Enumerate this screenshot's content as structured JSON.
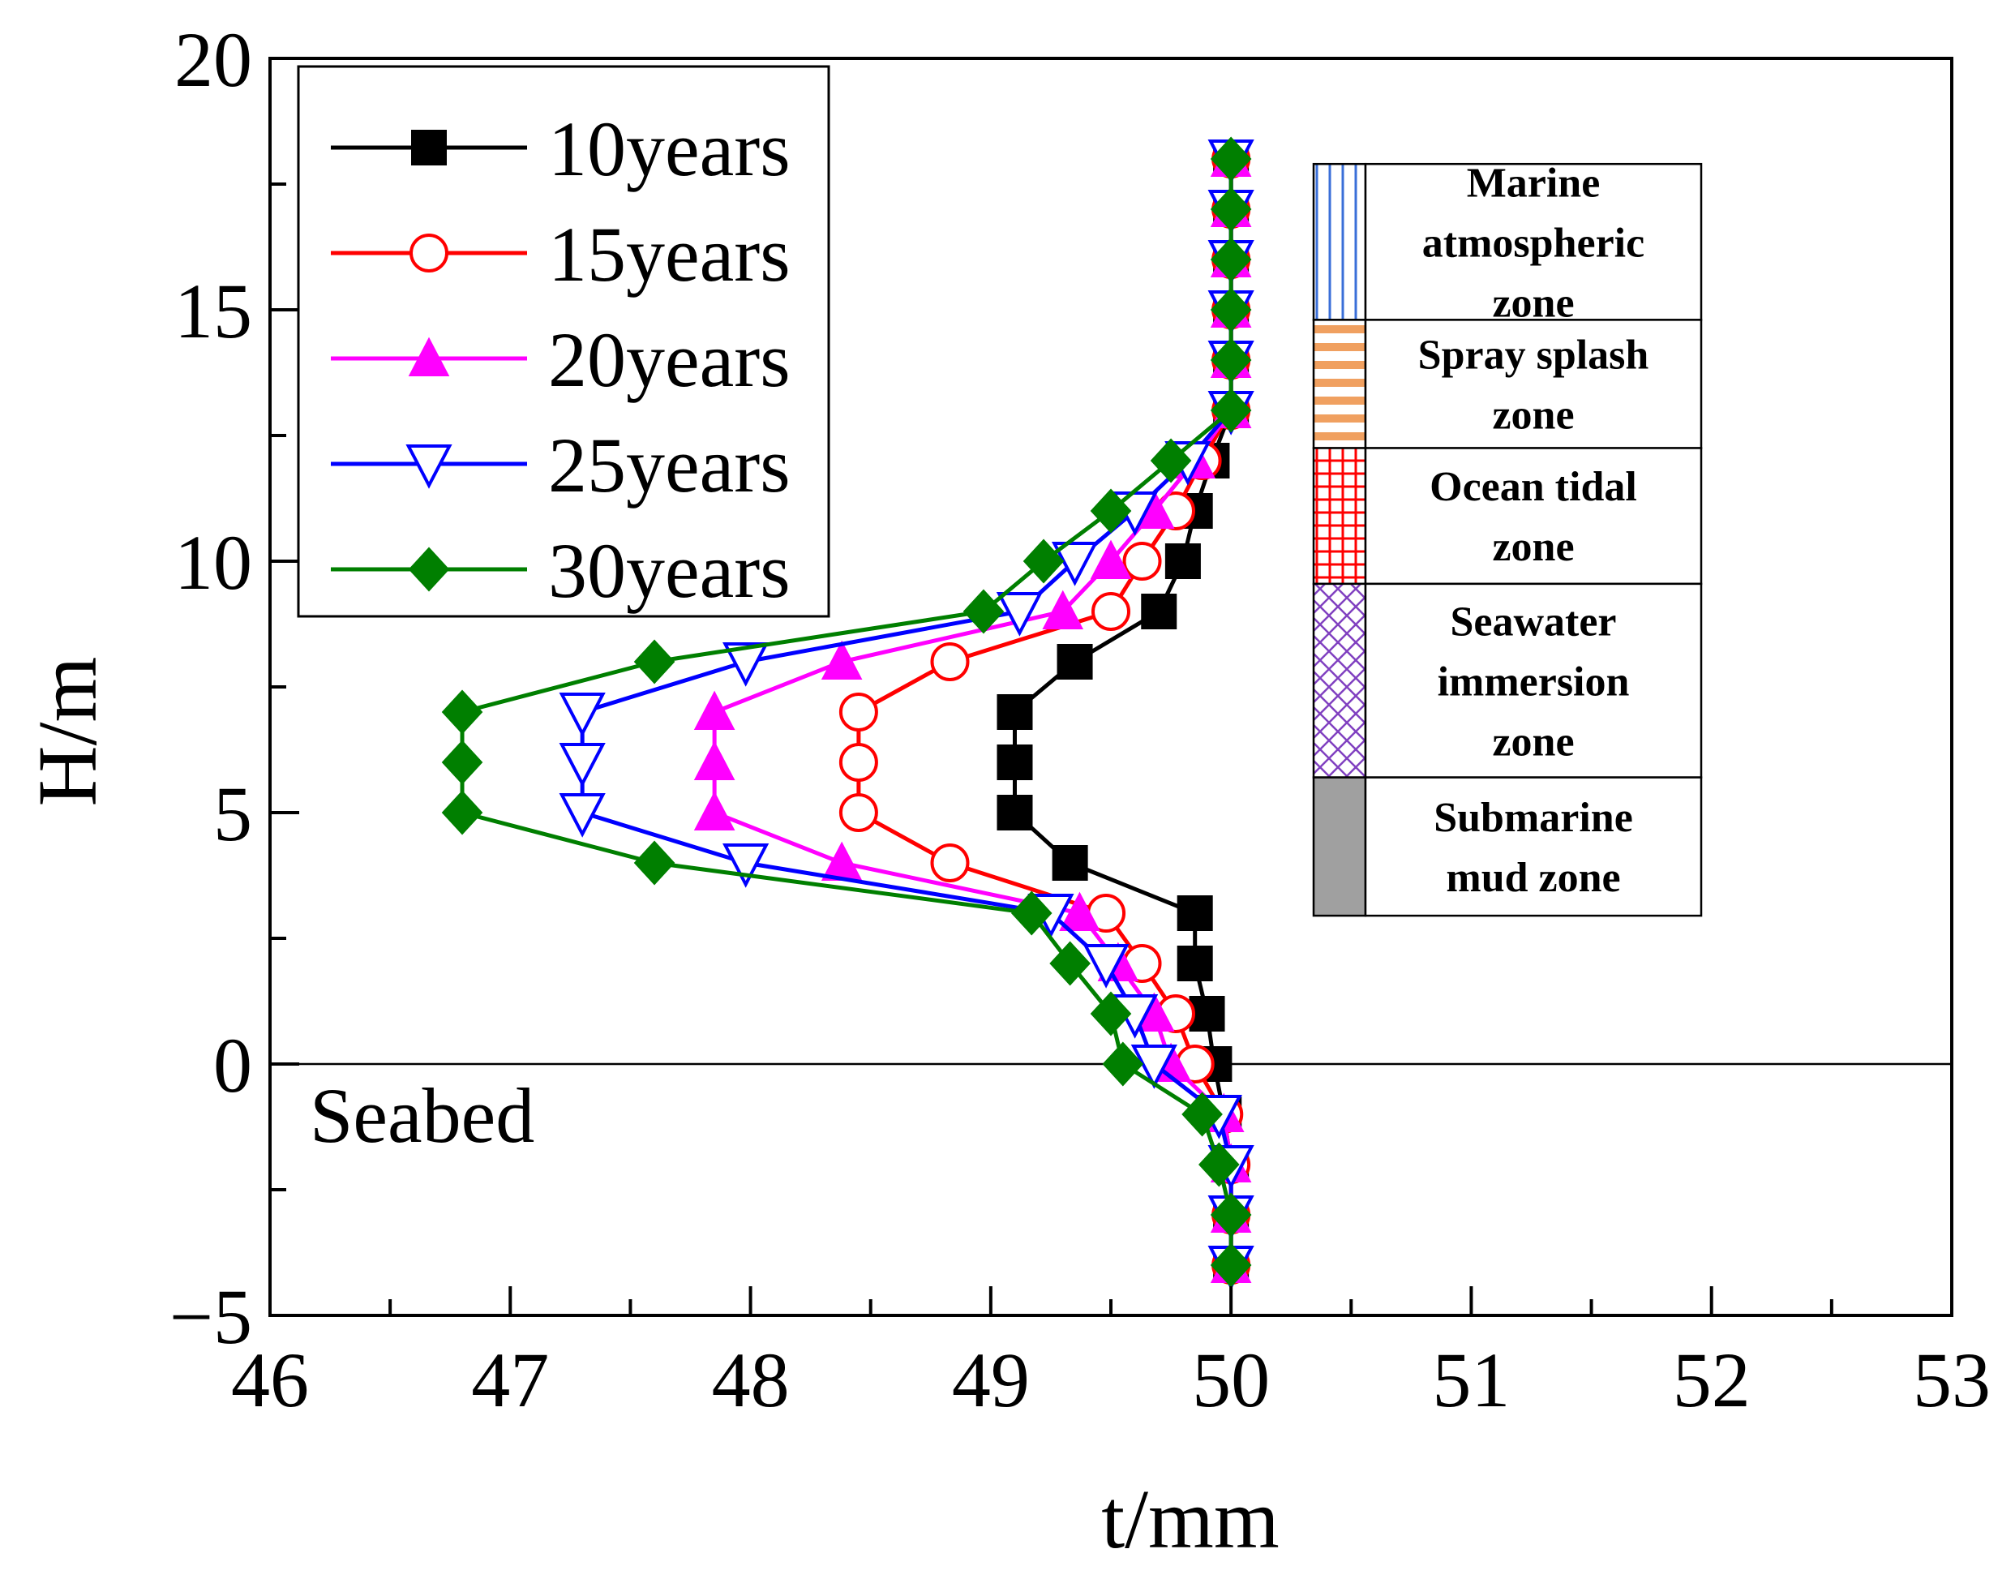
{
  "chart_data": {
    "type": "line",
    "xlabel": "t/mm",
    "ylabel": "H/m",
    "xlim": [
      46,
      53
    ],
    "ylim": [
      -5,
      20
    ],
    "xticks": [
      "46",
      "47",
      "48",
      "49",
      "50",
      "51",
      "52",
      "53"
    ],
    "yticks": [
      "−5",
      "0",
      "5",
      "10",
      "15",
      "20"
    ],
    "legend_position": "top-left",
    "grid": false,
    "y": [
      -4,
      -3,
      -2,
      -1,
      0,
      1,
      2,
      3,
      4,
      5,
      6,
      7,
      8,
      9,
      10,
      11,
      12,
      13,
      14,
      15,
      16,
      17,
      18
    ],
    "series": [
      {
        "name": "10years",
        "color": "#000000",
        "marker": "filled-square",
        "x": [
          50.0,
          50.0,
          50.0,
          49.97,
          49.93,
          49.9,
          49.85,
          49.85,
          49.33,
          49.1,
          49.1,
          49.1,
          49.35,
          49.7,
          49.8,
          49.85,
          49.92,
          50.0,
          50.0,
          50.0,
          50.0,
          50.0,
          50.0
        ]
      },
      {
        "name": "15years",
        "color": "#ff0000",
        "marker": "open-circle",
        "x": [
          50.0,
          50.0,
          50.0,
          49.97,
          49.85,
          49.77,
          49.63,
          49.48,
          48.83,
          48.45,
          48.45,
          48.45,
          48.83,
          49.5,
          49.63,
          49.77,
          49.88,
          50.0,
          50.0,
          50.0,
          50.0,
          50.0,
          50.0
        ]
      },
      {
        "name": "20years",
        "color": "#ff00ff",
        "marker": "filled-triangle",
        "x": [
          50.0,
          50.0,
          50.0,
          49.97,
          49.75,
          49.68,
          49.53,
          49.37,
          48.38,
          47.85,
          47.85,
          47.85,
          48.38,
          49.3,
          49.5,
          49.68,
          49.85,
          50.0,
          50.0,
          50.0,
          50.0,
          50.0,
          50.0
        ]
      },
      {
        "name": "25years",
        "color": "#0000ff",
        "marker": "open-triangle-down",
        "x": [
          50.0,
          50.0,
          50.0,
          49.95,
          49.68,
          49.6,
          49.48,
          49.25,
          47.98,
          47.3,
          47.3,
          47.3,
          47.98,
          49.12,
          49.35,
          49.6,
          49.82,
          50.0,
          50.0,
          50.0,
          50.0,
          50.0,
          50.0
        ]
      },
      {
        "name": "30years",
        "color": "#007f00",
        "marker": "filled-diamond",
        "x": [
          50.0,
          50.0,
          49.95,
          49.88,
          49.55,
          49.5,
          49.33,
          49.17,
          47.6,
          46.8,
          46.8,
          46.8,
          47.6,
          48.97,
          49.22,
          49.5,
          49.75,
          50.0,
          50.0,
          50.0,
          50.0,
          50.0,
          50.0
        ]
      }
    ],
    "annotations": {
      "seabed": "Seabed"
    },
    "zones": [
      {
        "lines": [
          "Marine",
          "atmospheric",
          "zone"
        ],
        "pattern": "vertical-lines",
        "pattern_color": "#3a6fd8",
        "y_range": [
          14.8,
          17.9
        ]
      },
      {
        "lines": [
          "Spray splash",
          "zone"
        ],
        "pattern": "horizontal-lines",
        "pattern_color": "#f0a060",
        "y_range": [
          12.25,
          14.8
        ]
      },
      {
        "lines": [
          "Ocean tidal",
          "zone"
        ],
        "pattern": "grid",
        "pattern_color": "#ff0000",
        "y_range": [
          9.55,
          12.25
        ]
      },
      {
        "lines": [
          "Seawater",
          "immersion",
          "zone"
        ],
        "pattern": "crosshatch",
        "pattern_color": "#8040c0",
        "y_range": [
          5.7,
          9.55
        ]
      },
      {
        "lines": [
          "Submarine",
          "mud zone"
        ],
        "pattern": "solid",
        "pattern_color": "#a0a0a0",
        "y_range": [
          2.95,
          5.7
        ]
      }
    ]
  }
}
